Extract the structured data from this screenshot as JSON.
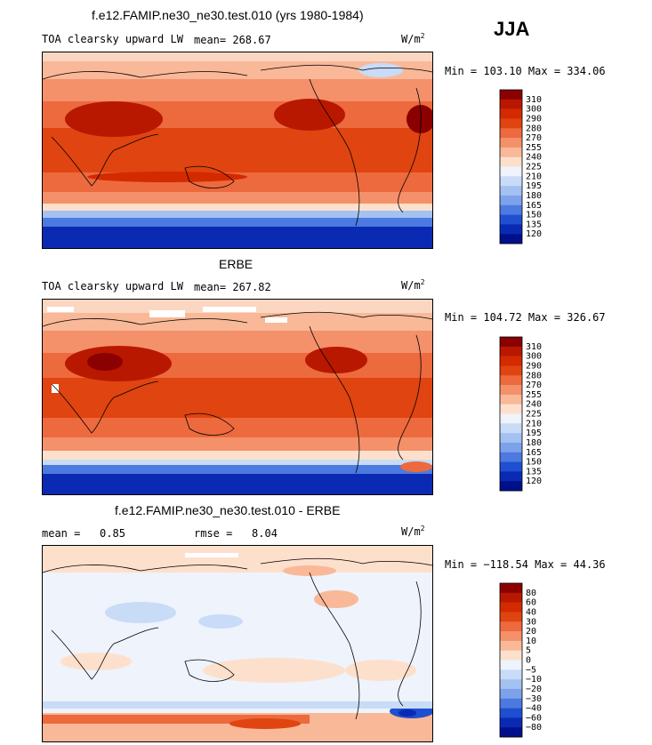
{
  "season": "JJA",
  "panels": [
    {
      "title": "f.e12.FAMIP.ne30_ne30.test.010 (yrs 1980-1984)",
      "variable": "TOA clearsky upward LW",
      "stat_label": "mean=",
      "stat_value": "268.67",
      "units_base": "W/m",
      "units_exp": "2",
      "minmax": "Min = 103.10 Max = 334.06"
    },
    {
      "title": "ERBE",
      "variable": "TOA clearsky upward LW",
      "stat_label": "mean=",
      "stat_value": "267.82",
      "units_base": "W/m",
      "units_exp": "2",
      "minmax": "Min = 104.72 Max = 326.67"
    },
    {
      "title": "f.e12.FAMIP.ne30_ne30.test.010 - ERBE",
      "mean_label": "mean =",
      "mean_value": "0.85",
      "rmse_label": "rmse =",
      "rmse_value": "8.04",
      "units_base": "W/m",
      "units_exp": "2",
      "minmax": "Min = −118.54 Max =  44.36"
    }
  ],
  "chart_data": [
    {
      "type": "heatmap",
      "title": "f.e12.FAMIP.ne30_ne30.test.010 (yrs 1980-1984)",
      "variable": "TOA clearsky upward LW",
      "mean": 268.67,
      "min": 103.1,
      "max": 334.06,
      "colorbar_levels": [
        310,
        300,
        290,
        280,
        270,
        255,
        240,
        225,
        210,
        195,
        180,
        165,
        150,
        135,
        120
      ],
      "colorbar_colors": [
        "#8b0000",
        "#b81800",
        "#d42a00",
        "#e04410",
        "#ec6a3e",
        "#f4906a",
        "#f9b898",
        "#fde0cc",
        "#eef3fc",
        "#c8dbf7",
        "#a3c1f1",
        "#7ca2ea",
        "#4c7ae0",
        "#1f4fd0",
        "#0a2ab4",
        "#00108a"
      ]
    },
    {
      "type": "heatmap",
      "title": "ERBE",
      "variable": "TOA clearsky upward LW",
      "mean": 267.82,
      "min": 104.72,
      "max": 326.67,
      "colorbar_levels": [
        310,
        300,
        290,
        280,
        270,
        255,
        240,
        225,
        210,
        195,
        180,
        165,
        150,
        135,
        120
      ],
      "colorbar_colors": [
        "#8b0000",
        "#b81800",
        "#d42a00",
        "#e04410",
        "#ec6a3e",
        "#f4906a",
        "#f9b898",
        "#fde0cc",
        "#eef3fc",
        "#c8dbf7",
        "#a3c1f1",
        "#7ca2ea",
        "#4c7ae0",
        "#1f4fd0",
        "#0a2ab4",
        "#00108a"
      ]
    },
    {
      "type": "heatmap",
      "title": "f.e12.FAMIP.ne30_ne30.test.010 - ERBE",
      "mean": 0.85,
      "rmse": 8.04,
      "min": -118.54,
      "max": 44.36,
      "colorbar_levels": [
        "80",
        "60",
        "40",
        "30",
        "20",
        "10",
        "5",
        "0",
        "−5",
        "−10",
        "−20",
        "−30",
        "−40",
        "−60",
        "−80"
      ],
      "colorbar_colors": [
        "#8b0000",
        "#b81800",
        "#d42a00",
        "#e04410",
        "#ec6a3e",
        "#f4906a",
        "#f9b898",
        "#fde0cc",
        "#eef3fc",
        "#c8dbf7",
        "#a3c1f1",
        "#7ca2ea",
        "#4c7ae0",
        "#1f4fd0",
        "#0a2ab4",
        "#00108a"
      ]
    }
  ]
}
